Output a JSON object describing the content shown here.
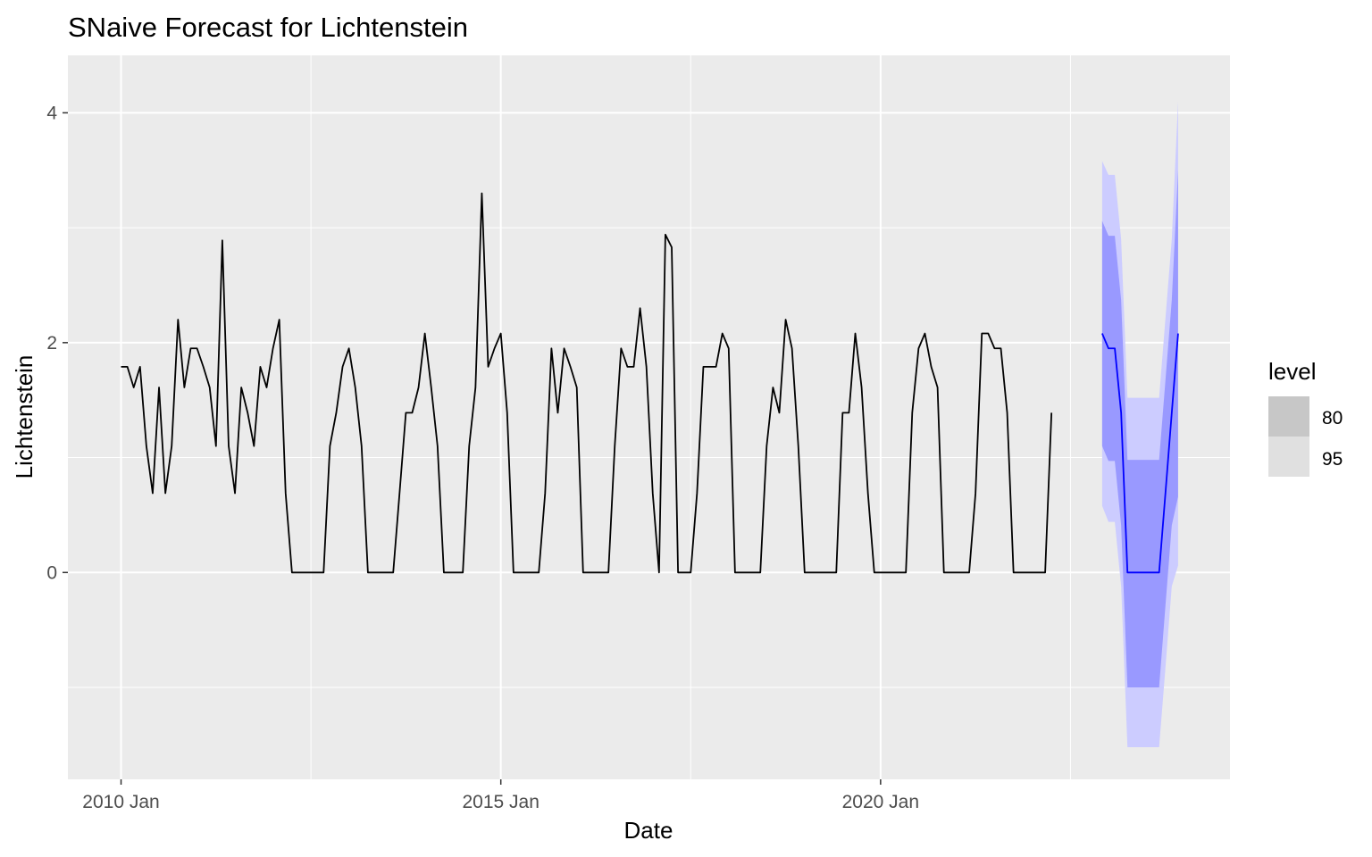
{
  "chart_data": {
    "type": "line",
    "title": "SNaive Forecast for Lichtenstein",
    "xlabel": "Date",
    "ylabel": "Lichtenstein",
    "xlim": [
      2009.3,
      2024.6
    ],
    "ylim": [
      -1.8,
      4.5
    ],
    "x_ticks": [
      {
        "value": 2010.0,
        "label": "2010 Jan"
      },
      {
        "value": 2015.0,
        "label": "2015 Jan"
      },
      {
        "value": 2020.0,
        "label": "2020 Jan"
      }
    ],
    "x_minor": [
      2012.5,
      2017.5,
      2022.5
    ],
    "y_ticks": [
      {
        "value": 0,
        "label": "0"
      },
      {
        "value": 2,
        "label": "2"
      },
      {
        "value": 4,
        "label": "4"
      }
    ],
    "y_minor": [
      -1,
      1,
      3
    ],
    "grid": true,
    "series": [
      {
        "color": "#000000",
        "x_start": 2010.0,
        "step": 0.0833333,
        "values": [
          1.79,
          1.79,
          1.61,
          1.79,
          1.1,
          0.69,
          1.61,
          0.69,
          1.1,
          2.2,
          1.61,
          1.95,
          1.95,
          1.79,
          1.61,
          1.1,
          2.89,
          1.1,
          0.69,
          1.61,
          1.39,
          1.1,
          1.79,
          1.61,
          1.95,
          2.2,
          0.69,
          0,
          0,
          0,
          0,
          0,
          0,
          1.1,
          1.39,
          1.79,
          1.95,
          1.61,
          1.1,
          0,
          0,
          0,
          0,
          0,
          0.69,
          1.39,
          1.39,
          1.61,
          2.08,
          1.61,
          1.1,
          0,
          0,
          0,
          0,
          1.1,
          1.61,
          3.3,
          1.79,
          1.95,
          2.08,
          1.39,
          0,
          0,
          0,
          0,
          0,
          0.69,
          1.95,
          1.39,
          1.95,
          1.79,
          1.61,
          0,
          0,
          0,
          0,
          0,
          1.1,
          1.95,
          1.79,
          1.79,
          2.3,
          1.79,
          0.69,
          0,
          2.94,
          2.83,
          0,
          0,
          0,
          0.69,
          1.79,
          1.79,
          1.79,
          2.08,
          1.95,
          0,
          0,
          0,
          0,
          0,
          1.1,
          1.61,
          1.39,
          2.2,
          1.95,
          1.1,
          0,
          0,
          0,
          0,
          0,
          0,
          1.39,
          1.39,
          2.08,
          1.61,
          0.69,
          0,
          0,
          0,
          0,
          0,
          0,
          1.39,
          1.95,
          2.08,
          1.79,
          1.61,
          0,
          0,
          0,
          0,
          0,
          0.69,
          2.08,
          2.08,
          1.95,
          1.95,
          1.39,
          0,
          0,
          0,
          0,
          0,
          0,
          1.39
        ]
      },
      {
        "color": "#0000ff",
        "x_start": 2022.917,
        "step": 0.0833333,
        "values": [
          2.08,
          1.95,
          1.95,
          1.39,
          0,
          0,
          0,
          0,
          0,
          0,
          0.69,
          1.39,
          2.08
        ]
      }
    ],
    "forecast_intervals": {
      "x_start": 2022.917,
      "step": 0.0833333,
      "lo80": [
        1.1,
        0.97,
        0.97,
        0.41,
        -1.0,
        -1.0,
        -1.0,
        -1.0,
        -1.0,
        -1.0,
        -0.29,
        0.41,
        0.66
      ],
      "hi80": [
        3.06,
        2.93,
        2.93,
        2.37,
        0.98,
        0.98,
        0.98,
        0.98,
        0.98,
        0.98,
        1.67,
        2.37,
        3.5
      ],
      "lo95": [
        0.58,
        0.44,
        0.44,
        -0.12,
        -1.52,
        -1.52,
        -1.52,
        -1.52,
        -1.52,
        -1.52,
        -0.83,
        -0.12,
        0.06
      ],
      "hi95": [
        3.58,
        3.46,
        3.46,
        2.9,
        1.52,
        1.52,
        1.52,
        1.52,
        1.52,
        1.52,
        2.21,
        2.9,
        4.1
      ],
      "color80": "#9999ff",
      "color95": "#ccccff"
    },
    "legend": {
      "position": "right",
      "title": "level",
      "entries": [
        {
          "label": "80",
          "color": "#c7c7c7"
        },
        {
          "label": "95",
          "color": "#e0e0e0"
        }
      ]
    },
    "panel_background": "#ebebeb"
  }
}
